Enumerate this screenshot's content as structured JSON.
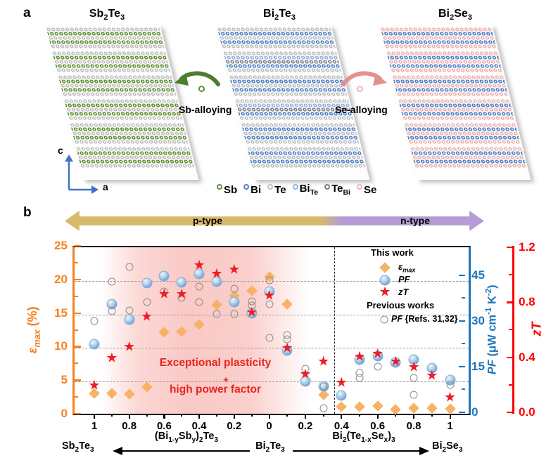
{
  "panel_a": {
    "label": "a",
    "structures": [
      {
        "title_html": "Sb<sub>2</sub>Te<sub>3</sub>"
      },
      {
        "title_html": "Bi<sub>2</sub>Te<sub>3</sub>"
      },
      {
        "title_html": "Bi<sub>2</sub>Se<sub>3</sub>"
      }
    ],
    "sb_alloying_label": "Sb-alloying",
    "se_alloying_label": "Se-alloying",
    "axis_c_label": "c",
    "axis_a_label": "a",
    "atom_legend": [
      {
        "key": "sb",
        "label_html": "Sb",
        "color": "#5f9130"
      },
      {
        "key": "bi",
        "label_html": "Bi",
        "color": "#4f81c7"
      },
      {
        "key": "te",
        "label_html": "Te",
        "color": "#bfbfbf"
      },
      {
        "key": "bite",
        "label_html": "Bi<sub>Te</sub>",
        "color": "#92b4e3"
      },
      {
        "key": "tebi",
        "label_html": "Te<sub>Bi</sub>",
        "color": "#7f7f7f"
      },
      {
        "key": "se",
        "label_html": "Se",
        "color": "#efb2b0"
      }
    ]
  },
  "panel_b": {
    "label": "b",
    "p_type_label": "p-type",
    "n_type_label": "n-type",
    "colors": {
      "p_band": "#d7b96c",
      "n_band": "#b59cd6",
      "epsilon_axis": "#f5821f",
      "pf_axis": "#1b75bc",
      "zt_axis": "#ff0000",
      "star": "#ee1c25",
      "diamond": "#f7b267",
      "ref_circle": "#8c8c8c",
      "highlight": "#f7a8a2",
      "annotation": "#e8261f"
    },
    "legend": {
      "this_work": "This work",
      "emax_html": "<i>&#949;<sub>max</sub></i>",
      "pf_html": "<i>PF</i>",
      "zt_html": "<i>zT</i>",
      "previous_works": "Previous works",
      "refs_html": "<i>PF</i> {Refs. 31,32}"
    },
    "annotations": {
      "line1": "Exceptional plasticity",
      "plus": "+",
      "line2": "high power factor"
    },
    "bottom": {
      "left_formula_html": "Sb<sub>2</sub>Te<sub>3</sub>",
      "mid_left_formula_html": "(Bi<sub>1-y</sub>Sb<sub>y</sub>)<sub>2</sub>Te<sub>3</sub>",
      "center_formula_html": "Bi<sub>2</sub>Te<sub>3</sub>",
      "mid_right_formula_html": "Bi<sub>2</sub>(Te<sub>1-x</sub>Se<sub>x</sub>)<sub>3</sub>",
      "right_formula_html": "Bi<sub>2</sub>Se<sub>3</sub>"
    }
  },
  "chart_data": {
    "type": "scatter",
    "description": "epsilon_max, PF and zT vs composition across (Bi1-ySby)2Te3 (left half, y from 1 to 0) and Bi2(Te1-xSex)3 (right half, x from 0 to 1)",
    "axes": {
      "epsilon": {
        "label_html": "<i>&#949;<sub>max</sub></i> (%)",
        "range": [
          0,
          25
        ],
        "tick_values": [
          0,
          5,
          10,
          15,
          20,
          25
        ],
        "ticks": [
          "0",
          "5",
          "10",
          "15",
          "20",
          "25"
        ]
      },
      "pf": {
        "label_html": "<i>PF</i> (&#956;W cm<sup>-1</sup> K<sup>-2</sup>)",
        "tick_values": [
          0,
          15,
          30,
          45
        ],
        "ticks": [
          "0",
          "15",
          "30",
          "45"
        ]
      },
      "zt": {
        "label_html": "<i>zT</i>",
        "tick_values": [
          0,
          0.4,
          0.8,
          1.2
        ],
        "ticks": [
          "0.0",
          "0.4",
          "0.8",
          "1.2"
        ]
      },
      "x": {
        "left_ticks": [
          "1",
          "0.8",
          "0.6",
          "0.4",
          "0.2",
          "0"
        ],
        "left_tick_values": [
          1,
          0.8,
          0.6,
          0.4,
          0.2,
          0
        ],
        "right_ticks": [
          "0.2",
          "0.4",
          "0.6",
          "0.8",
          "1"
        ],
        "right_tick_values": [
          0.2,
          0.4,
          0.6,
          0.8,
          1
        ],
        "minor_left": [
          0.9,
          0.7,
          0.5,
          0.3,
          0.1
        ],
        "minor_right": [
          0.1,
          0.3,
          0.5,
          0.7,
          0.9
        ]
      }
    },
    "gridlines_epsilon": [
      5,
      10,
      15,
      20
    ],
    "divider": {
      "side": "R",
      "x": 0.36
    },
    "highlight_region": {
      "side": "L",
      "from_y": 0.95,
      "to_y": 0.2,
      "label": "Exceptional plasticity + high power factor"
    },
    "series": [
      {
        "name": "emax",
        "axis": "epsilon",
        "marker": "diamond",
        "units": "%",
        "points": [
          [
            "L",
            1,
            3.0
          ],
          [
            "L",
            0.9,
            3.0
          ],
          [
            "L",
            0.8,
            2.9
          ],
          [
            "L",
            0.7,
            4.0
          ],
          [
            "L",
            0.6,
            12.1
          ],
          [
            "L",
            0.5,
            12.2
          ],
          [
            "L",
            0.4,
            13.3
          ],
          [
            "L",
            0.3,
            16.2
          ],
          [
            "L",
            0.2,
            17.6
          ],
          [
            "L",
            0.1,
            18.3
          ],
          [
            "L",
            0,
            20.4
          ],
          [
            "R",
            0.1,
            16.3
          ],
          [
            "R",
            0.2,
            5.1
          ],
          [
            "R",
            0.3,
            2.8
          ],
          [
            "R",
            0.4,
            1.0
          ],
          [
            "R",
            0.5,
            1.0
          ],
          [
            "R",
            0.6,
            1.1
          ],
          [
            "R",
            0.7,
            0.6
          ],
          [
            "R",
            0.8,
            0.8
          ],
          [
            "R",
            0.9,
            0.8
          ],
          [
            "R",
            1,
            0.7
          ]
        ]
      },
      {
        "name": "PF",
        "axis": "pf",
        "marker": "sphere",
        "units": "uW cm-1 K-2",
        "points": [
          [
            "L",
            1,
            22.4
          ],
          [
            "L",
            0.9,
            35.5
          ],
          [
            "L",
            0.8,
            30.5
          ],
          [
            "L",
            0.7,
            42.5
          ],
          [
            "L",
            0.6,
            44.7
          ],
          [
            "L",
            0.5,
            42.6
          ],
          [
            "L",
            0.4,
            45.5
          ],
          [
            "L",
            0.3,
            42.8
          ],
          [
            "L",
            0.2,
            36.1
          ],
          [
            "L",
            0.1,
            32.4
          ],
          [
            "L",
            0,
            39.7
          ],
          [
            "R",
            0.1,
            20.4
          ],
          [
            "R",
            0.2,
            10.2
          ],
          [
            "R",
            0.3,
            8.6
          ],
          [
            "R",
            0.4,
            5.5
          ],
          [
            "R",
            0.5,
            17.2
          ],
          [
            "R",
            0.6,
            18.5
          ],
          [
            "R",
            0.7,
            16.3
          ],
          [
            "R",
            0.8,
            17.3
          ],
          [
            "R",
            0.9,
            14.6
          ],
          [
            "R",
            1,
            10.6
          ]
        ]
      },
      {
        "name": "PF_refs",
        "axis": "pf",
        "marker": "circle",
        "units": "uW cm-1 K-2",
        "points": [
          [
            "L",
            1,
            29.9
          ],
          [
            "L",
            0.9,
            42.8
          ],
          [
            "L",
            0.9,
            33.2
          ],
          [
            "L",
            0.8,
            47.8
          ],
          [
            "L",
            0.8,
            33.4
          ],
          [
            "L",
            0.7,
            36.2
          ],
          [
            "L",
            0.6,
            39.7
          ],
          [
            "L",
            0.5,
            37.6
          ],
          [
            "L",
            0.4,
            41.2
          ],
          [
            "L",
            0.4,
            36.2
          ],
          [
            "L",
            0.3,
            32.3
          ],
          [
            "L",
            0.2,
            40.6
          ],
          [
            "L",
            0.2,
            32.3
          ],
          [
            "L",
            0.1,
            36.4
          ],
          [
            "L",
            0.1,
            35.1
          ],
          [
            "L",
            0,
            43.3
          ],
          [
            "L",
            0,
            35.5
          ],
          [
            "L",
            0,
            24.4
          ],
          [
            "R",
            0.1,
            25.4
          ],
          [
            "R",
            0.1,
            24.0
          ],
          [
            "R",
            0.2,
            14.2
          ],
          [
            "R",
            0.3,
            8.6
          ],
          [
            "R",
            0.3,
            1.4
          ],
          [
            "R",
            0.5,
            12.9
          ],
          [
            "R",
            0.5,
            11.2
          ],
          [
            "R",
            0.6,
            15.1
          ],
          [
            "R",
            0.8,
            11.2
          ],
          [
            "R",
            0.8,
            5.7
          ],
          [
            "R",
            1,
            8.9
          ]
        ]
      },
      {
        "name": "zT",
        "axis": "zt",
        "marker": "star",
        "units": "",
        "points": [
          [
            "L",
            1,
            0.19
          ],
          [
            "L",
            0.9,
            0.39
          ],
          [
            "L",
            0.8,
            0.47
          ],
          [
            "L",
            0.7,
            0.69
          ],
          [
            "L",
            0.6,
            0.85
          ],
          [
            "L",
            0.5,
            0.85
          ],
          [
            "L",
            0.4,
            1.06
          ],
          [
            "L",
            0.3,
            1.0
          ],
          [
            "L",
            0.2,
            1.03
          ],
          [
            "L",
            0.1,
            0.72
          ],
          [
            "L",
            0,
            0.84
          ],
          [
            "R",
            0.1,
            0.46
          ],
          [
            "R",
            0.2,
            0.27
          ],
          [
            "R",
            0.3,
            0.36
          ],
          [
            "R",
            0.4,
            0.21
          ],
          [
            "R",
            0.5,
            0.4
          ],
          [
            "R",
            0.6,
            0.42
          ],
          [
            "R",
            0.7,
            0.36
          ],
          [
            "R",
            0.8,
            0.32
          ],
          [
            "R",
            0.9,
            0.26
          ],
          [
            "R",
            1,
            0.1
          ]
        ]
      }
    ]
  }
}
